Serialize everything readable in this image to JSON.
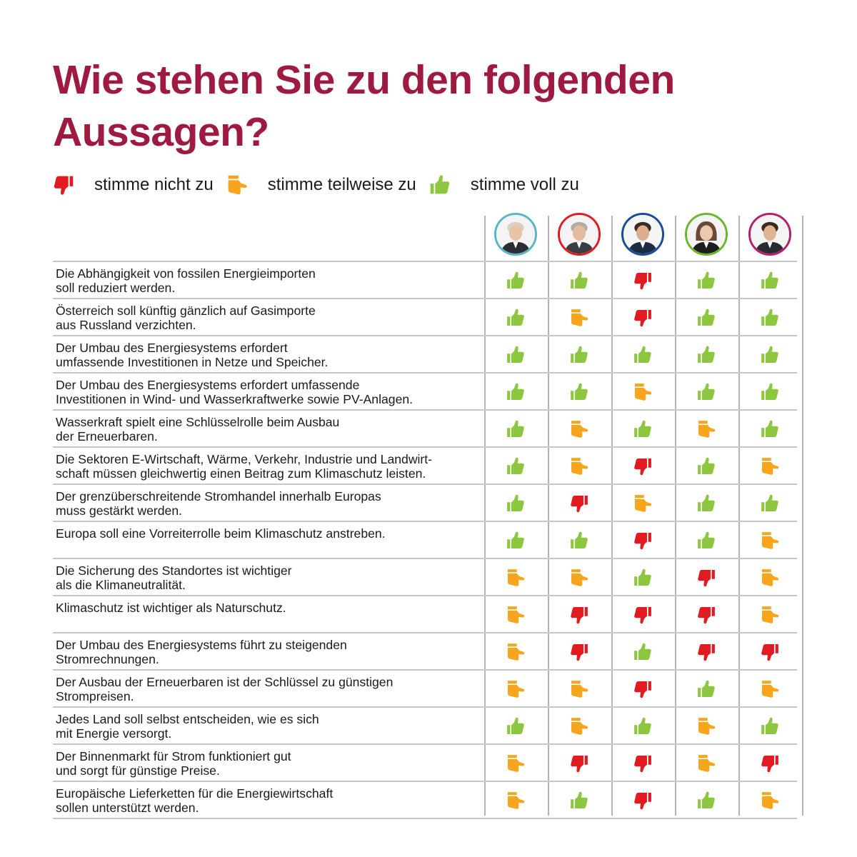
{
  "title": "Wie stehen Sie zu den folgenden Aussagen?",
  "colors": {
    "title": "#9e1a40",
    "up": "#8dc63f",
    "part": "#f7a51c",
    "down": "#e11b22"
  },
  "legend": [
    {
      "key": "down",
      "icon": "thumbs-down-icon",
      "label": "stimme nicht zu"
    },
    {
      "key": "part",
      "icon": "thumbs-sideways-icon",
      "label": "stimme teilweise zu"
    },
    {
      "key": "up",
      "icon": "thumbs-up-icon",
      "label": "stimme voll zu"
    }
  ],
  "candidates": [
    {
      "name": "candidate-1",
      "ring": "#5ab5c8"
    },
    {
      "name": "candidate-2",
      "ring": "#e11b22"
    },
    {
      "name": "candidate-3",
      "ring": "#1a4a9a"
    },
    {
      "name": "candidate-4",
      "ring": "#6cb52e"
    },
    {
      "name": "candidate-5",
      "ring": "#b41e6e"
    }
  ],
  "statements": [
    {
      "text": "Die Abhängigkeit von fossilen Energieimporten\nsoll reduziert werden.",
      "votes": [
        "up",
        "up",
        "down",
        "up",
        "up"
      ]
    },
    {
      "text": "Österreich soll künftig gänzlich auf Gasimporte\naus Russland verzichten.",
      "votes": [
        "up",
        "part",
        "down",
        "up",
        "up"
      ]
    },
    {
      "text": "Der Umbau des Energiesystems erfordert\numfassende Investitionen in Netze und Speicher.",
      "votes": [
        "up",
        "up",
        "up",
        "up",
        "up"
      ]
    },
    {
      "text": "Der Umbau des Energiesystems erfordert umfassende\nInvestitionen in Wind- und Wasserkraftwerke sowie PV-Anlagen.",
      "votes": [
        "up",
        "up",
        "part",
        "up",
        "up"
      ]
    },
    {
      "text": "Wasserkraft spielt eine Schlüsselrolle beim Ausbau\nder Erneuerbaren.",
      "votes": [
        "up",
        "part",
        "up",
        "part",
        "up"
      ]
    },
    {
      "text": "Die Sektoren E-Wirtschaft, Wärme, Verkehr, Industrie und Landwirt-\nschaft müssen gleichwertig einen Beitrag zum Klimaschutz leisten.",
      "votes": [
        "up",
        "part",
        "down",
        "up",
        "part"
      ]
    },
    {
      "text": "Der grenzüberschreitende Stromhandel innerhalb Europas\nmuss gestärkt werden.",
      "votes": [
        "up",
        "down",
        "part",
        "up",
        "up"
      ]
    },
    {
      "text": "Europa soll eine Vorreiterrolle beim Klimaschutz anstreben.",
      "votes": [
        "up",
        "up",
        "down",
        "up",
        "part"
      ]
    },
    {
      "text": "Die Sicherung des Standortes ist wichtiger\nals die Klimaneutralität.",
      "votes": [
        "part",
        "part",
        "up",
        "down",
        "part"
      ]
    },
    {
      "text": "Klimaschutz ist wichtiger als Naturschutz.",
      "votes": [
        "part",
        "down",
        "down",
        "down",
        "part"
      ]
    },
    {
      "text": "Der Umbau des Energiesystems führt zu steigenden\nStromrechnungen.",
      "votes": [
        "part",
        "down",
        "up",
        "down",
        "down"
      ]
    },
    {
      "text": "Der Ausbau der Erneuerbaren ist der Schlüssel zu günstigen\nStrompreisen.",
      "votes": [
        "part",
        "part",
        "down",
        "up",
        "part"
      ]
    },
    {
      "text": "Jedes Land soll selbst entscheiden, wie es sich\nmit Energie versorgt.",
      "votes": [
        "up",
        "part",
        "up",
        "part",
        "up"
      ]
    },
    {
      "text": "Der Binnenmarkt für Strom funktioniert gut\nund sorgt für günstige Preise.",
      "votes": [
        "part",
        "down",
        "down",
        "part",
        "down"
      ]
    },
    {
      "text": "Europäische Lieferketten für die Energiewirtschaft\nsollen unterstützt werden.",
      "votes": [
        "part",
        "up",
        "down",
        "up",
        "part"
      ]
    }
  ]
}
